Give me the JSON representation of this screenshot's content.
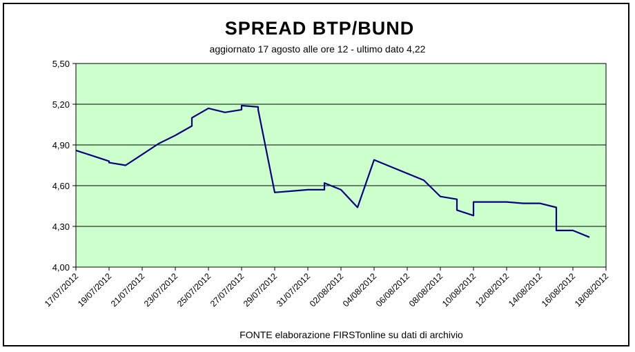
{
  "chart_data": {
    "type": "line",
    "title": "SPREAD BTP/BUND",
    "subtitle": "aggiornato 17 agosto alle ore 12 - ultimo dato 4,22",
    "source": "FONTE elaborazione FIRSTonline su dati di archivio",
    "xlabel": "",
    "ylabel": "",
    "ylim": [
      4.0,
      5.5
    ],
    "yticks": [
      4.0,
      4.3,
      4.6,
      4.9,
      5.2,
      5.5
    ],
    "ytick_labels": [
      "4,00",
      "4,30",
      "4,60",
      "4,90",
      "5,20",
      "5,50"
    ],
    "xlim": [
      "2012-07-17",
      "2012-08-18"
    ],
    "xticks": [
      "2012-07-17",
      "2012-07-19",
      "2012-07-21",
      "2012-07-23",
      "2012-07-25",
      "2012-07-27",
      "2012-07-29",
      "2012-07-31",
      "2012-08-02",
      "2012-08-04",
      "2012-08-06",
      "2012-08-08",
      "2012-08-10",
      "2012-08-12",
      "2012-08-14",
      "2012-08-16",
      "2012-08-18"
    ],
    "xtick_labels": [
      "17/07/2012",
      "19/07/2012",
      "21/07/2012",
      "23/07/2012",
      "25/07/2012",
      "27/07/2012",
      "29/07/2012",
      "31/07/2012",
      "02/08/2012",
      "04/08/2012",
      "06/08/2012",
      "08/08/2012",
      "10/08/2012",
      "12/08/2012",
      "14/08/2012",
      "16/08/2012",
      "18/08/2012"
    ],
    "grid": true,
    "colors": {
      "plot_background": "#ccffcc",
      "line": "#000080",
      "grid": "#000000"
    },
    "series": [
      {
        "x": [
          "2012-07-17",
          "2012-07-18",
          "2012-07-19",
          "2012-07-19",
          "2012-07-20",
          "2012-07-21",
          "2012-07-22",
          "2012-07-23",
          "2012-07-24",
          "2012-07-24",
          "2012-07-25",
          "2012-07-25",
          "2012-07-26",
          "2012-07-27",
          "2012-07-27",
          "2012-07-28",
          "2012-07-28",
          "2012-07-29",
          "2012-07-30",
          "2012-07-31",
          "2012-08-01",
          "2012-08-01",
          "2012-08-02",
          "2012-08-03",
          "2012-08-04",
          "2012-08-05",
          "2012-08-06",
          "2012-08-07",
          "2012-08-08",
          "2012-08-09",
          "2012-08-09",
          "2012-08-10",
          "2012-08-10",
          "2012-08-11",
          "2012-08-12",
          "2012-08-13",
          "2012-08-14",
          "2012-08-15",
          "2012-08-15",
          "2012-08-16",
          "2012-08-17"
        ],
        "y": [
          4.86,
          4.82,
          4.78,
          4.77,
          4.75,
          4.83,
          4.91,
          4.97,
          5.04,
          5.1,
          5.17,
          5.17,
          5.14,
          5.16,
          5.19,
          5.18,
          5.16,
          4.55,
          4.56,
          4.57,
          4.57,
          4.62,
          4.57,
          4.44,
          4.79,
          4.74,
          4.69,
          4.64,
          4.52,
          4.5,
          4.42,
          4.38,
          4.48,
          4.48,
          4.48,
          4.47,
          4.47,
          4.44,
          4.27,
          4.27,
          4.22
        ]
      }
    ]
  }
}
